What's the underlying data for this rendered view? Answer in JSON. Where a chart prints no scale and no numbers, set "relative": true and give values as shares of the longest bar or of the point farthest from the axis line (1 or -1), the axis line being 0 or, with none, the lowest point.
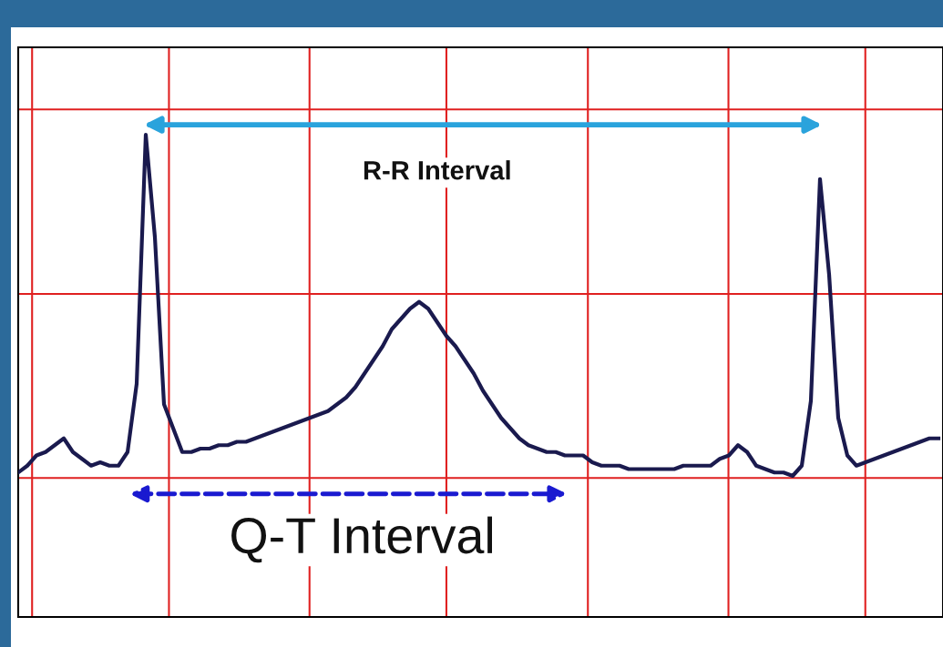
{
  "chart_data": {
    "type": "line",
    "relative": true,
    "grid": true,
    "line_style": "solid",
    "categories": [
      null,
      null,
      null,
      null,
      null,
      null,
      null,
      null,
      null,
      null,
      null,
      null,
      null,
      null,
      null,
      null,
      null,
      null,
      null,
      null,
      null,
      null,
      null,
      null,
      null,
      null,
      null,
      null,
      null,
      null,
      null,
      null,
      null,
      null,
      null,
      null,
      null,
      null,
      null,
      null,
      null,
      null,
      null,
      null,
      null,
      null,
      null,
      null,
      null,
      null,
      null,
      null,
      null,
      null,
      null,
      null,
      null,
      null,
      null,
      null,
      null,
      null,
      null,
      null,
      null,
      null,
      null,
      null,
      null,
      null,
      null,
      null,
      null,
      null,
      null,
      null,
      null,
      null,
      null,
      null,
      null,
      null,
      null,
      null,
      null,
      null,
      null,
      null,
      null,
      null,
      null,
      null,
      null,
      null,
      null,
      null,
      null,
      null,
      null,
      null,
      null,
      null
    ],
    "series": [
      {
        "color": "#1a1a4e",
        "values": [
          0.01,
          0.03,
          0.06,
          0.07,
          0.09,
          0.11,
          0.07,
          0.05,
          0.03,
          0.04,
          0.03,
          0.03,
          0.07,
          0.27,
          1.0,
          0.7,
          0.21,
          0.14,
          0.07,
          0.07,
          0.08,
          0.08,
          0.09,
          0.09,
          0.1,
          0.1,
          0.11,
          0.12,
          0.13,
          0.14,
          0.15,
          0.16,
          0.17,
          0.18,
          0.19,
          0.21,
          0.23,
          0.26,
          0.3,
          0.34,
          0.38,
          0.43,
          0.46,
          0.49,
          0.51,
          0.49,
          0.45,
          0.41,
          0.38,
          0.34,
          0.3,
          0.25,
          0.21,
          0.17,
          0.14,
          0.11,
          0.09,
          0.08,
          0.07,
          0.07,
          0.06,
          0.06,
          0.06,
          0.04,
          0.03,
          0.03,
          0.03,
          0.02,
          0.02,
          0.02,
          0.02,
          0.02,
          0.02,
          0.03,
          0.03,
          0.03,
          0.03,
          0.05,
          0.06,
          0.09,
          0.07,
          0.03,
          0.02,
          0.01,
          0.01,
          0.0,
          0.03,
          0.22,
          0.87,
          0.59,
          0.17,
          0.06,
          0.03,
          0.04,
          0.05,
          0.06,
          0.07,
          0.08,
          0.09,
          0.1,
          0.11,
          0.11
        ]
      }
    ],
    "annotations": [
      "R-R Interval",
      "Q-T Interval"
    ]
  }
}
